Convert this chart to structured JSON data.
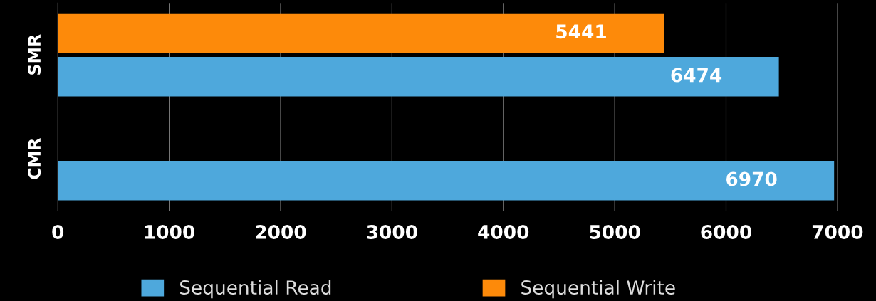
{
  "chart_data": {
    "type": "bar",
    "orientation": "horizontal",
    "categories": [
      "SMR",
      "CMR"
    ],
    "series": [
      {
        "name": "Sequential Read",
        "color": "#4ea8dc",
        "values": [
          6474,
          6970
        ],
        "value_labels": [
          "6474",
          "6970"
        ]
      },
      {
        "name": "Sequential Write",
        "color": "#fd8a0a",
        "values": [
          5441,
          null
        ],
        "value_labels": [
          "5441",
          null
        ]
      }
    ],
    "xlim": [
      0,
      7000
    ],
    "xticks": [
      0,
      1000,
      2000,
      3000,
      4000,
      5000,
      6000,
      7000
    ],
    "grid": "x",
    "legend": "bottom"
  }
}
